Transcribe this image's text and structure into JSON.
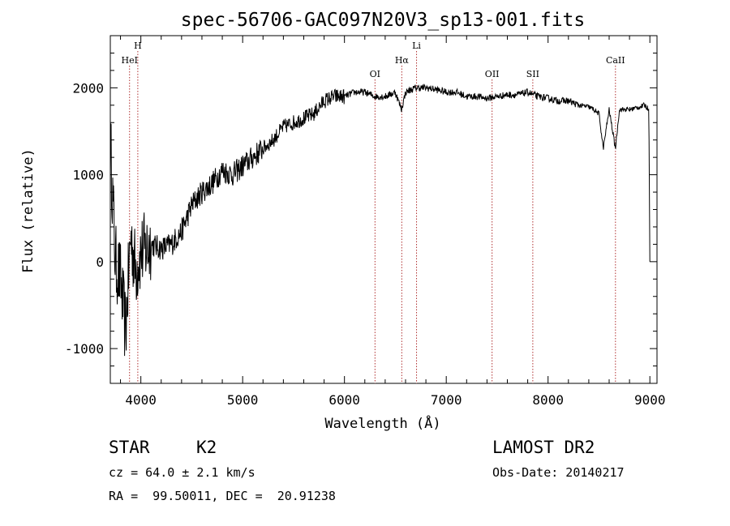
{
  "chart_data": {
    "type": "line",
    "title": "spec-56706-GAC097N20V3_sp13-001.fits",
    "xlabel": "Wavelength (Å)",
    "ylabel": "Flux (relative)",
    "xlim": [
      3700,
      9070
    ],
    "ylim": [
      -1400,
      2600
    ],
    "xticks": [
      4000,
      5000,
      6000,
      7000,
      8000,
      9000
    ],
    "yticks": [
      -1000,
      0,
      1000,
      2000
    ],
    "grid": false,
    "series": [
      {
        "x": [
          3700,
          3750,
          3800,
          3850,
          3900,
          3950,
          4000,
          4100,
          4200,
          4300,
          4400,
          4500,
          4600,
          4700,
          4800,
          4900,
          5000,
          5100,
          5200,
          5300,
          5400,
          5500,
          5600,
          5700,
          5800,
          5900,
          6000,
          6100,
          6200,
          6300,
          6400,
          6500,
          6560,
          6600,
          6700,
          6800,
          6900,
          7000,
          7100,
          7200,
          7300,
          7400,
          7500,
          7600,
          7700,
          7800,
          7900,
          8000,
          8100,
          8200,
          8300,
          8400,
          8450,
          8500,
          8542,
          8600,
          8662,
          8700,
          8800,
          8900,
          8950,
          8990,
          9000
        ],
        "y": [
          1400,
          0,
          -200,
          -800,
          300,
          -100,
          100,
          200,
          150,
          200,
          350,
          650,
          800,
          900,
          1050,
          1000,
          1100,
          1200,
          1300,
          1400,
          1550,
          1600,
          1650,
          1700,
          1850,
          1900,
          1900,
          1950,
          1950,
          1900,
          1900,
          1950,
          1750,
          1950,
          2000,
          2000,
          1980,
          1950,
          1950,
          1900,
          1900,
          1880,
          1900,
          1920,
          1920,
          1950,
          1900,
          1880,
          1850,
          1850,
          1800,
          1780,
          1750,
          1700,
          1300,
          1750,
          1300,
          1750,
          1750,
          1780,
          1800,
          1750,
          0
        ]
      }
    ],
    "lines": [
      {
        "label": "HeI",
        "x": 3889
      },
      {
        "label": "H",
        "x": 3970
      },
      {
        "label": "OI",
        "x": 6300
      },
      {
        "label": "Hα",
        "x": 6563
      },
      {
        "label": "Li",
        "x": 6708
      },
      {
        "label": "OII",
        "x": 7450
      },
      {
        "label": "SII",
        "x": 7850
      },
      {
        "label": "CaII",
        "x": 8662
      }
    ]
  },
  "info": {
    "class": "STAR",
    "subclass": "K2",
    "cz": "cz = 64.0 ± 2.1 km/s",
    "coords": "RA =  99.50011, DEC =  20.91238",
    "survey": "LAMOST DR2",
    "obsdate": "Obs-Date: 20140217"
  }
}
